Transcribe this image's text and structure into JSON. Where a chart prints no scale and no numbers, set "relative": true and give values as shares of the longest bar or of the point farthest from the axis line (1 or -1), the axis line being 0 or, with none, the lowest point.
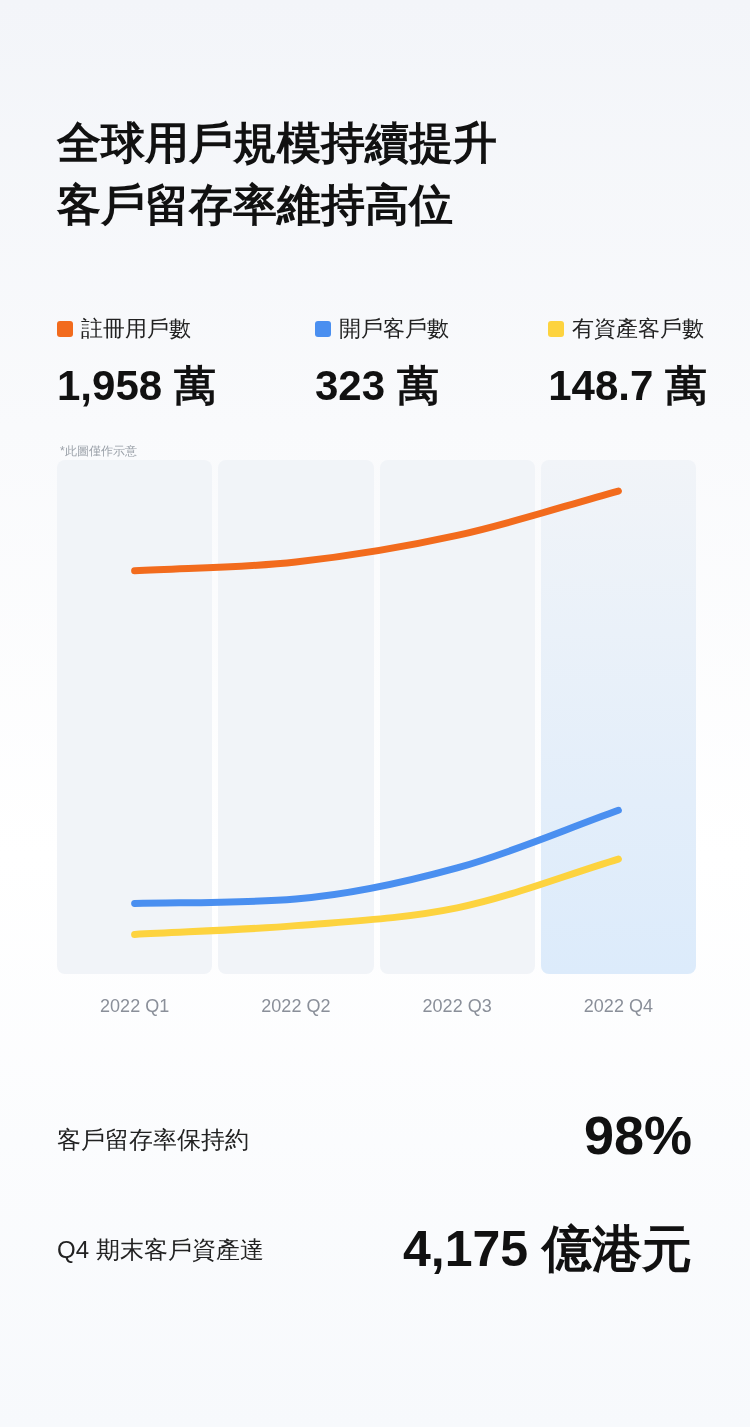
{
  "chart_data": {
    "type": "line",
    "title": "全球用戶規模持續提升客戶留存率維持高位",
    "categories": [
      "2022 Q1",
      "2022 Q2",
      "2022 Q3",
      "2022 Q4"
    ],
    "relative": true,
    "legend": "top",
    "marker": "none",
    "series": [
      {
        "name": "註冊用戶數",
        "color": "#f26b1d",
        "values": [
          0.82,
          0.84,
          0.9,
          1
        ]
      },
      {
        "name": "開戶客戶數",
        "color": "#4a8ff0",
        "values": [
          0.07,
          0.08,
          0.15,
          0.28
        ]
      },
      {
        "name": "有資產客戶數",
        "color": "#fdd33f",
        "values": [
          0,
          0.02,
          0.06,
          0.17
        ]
      }
    ],
    "annotations": [
      "*此圖僅作示意",
      "1,958 萬",
      "323 萬",
      "148.7 萬",
      "客戶留存率保持約",
      "98%",
      "Q4 期末客戶資產達",
      "4,175 億港元"
    ]
  }
}
